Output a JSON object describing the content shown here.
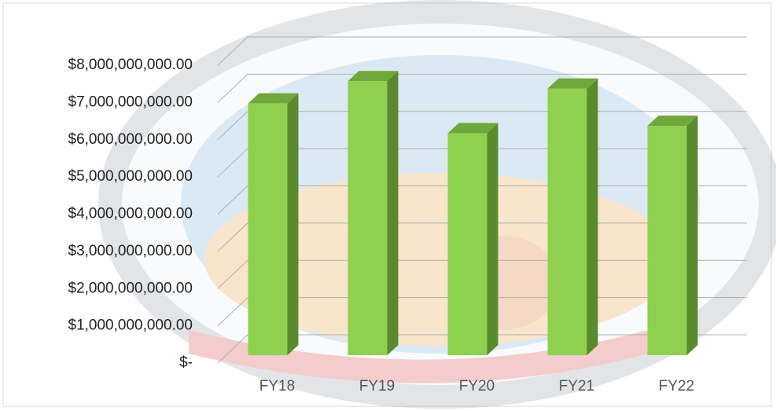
{
  "chart_data": {
    "type": "bar3d",
    "categories": [
      "FY18",
      "FY19",
      "FY20",
      "FY21",
      "FY22"
    ],
    "values": [
      7100000000,
      7700000000,
      6300000000,
      7500000000,
      6500000000
    ],
    "color": "#8fd14f",
    "ylim": [
      0,
      8000000000
    ],
    "yticks": [
      {
        "value": 0,
        "label": "$-"
      },
      {
        "value": 1000000000,
        "label": "$1,000,000,000.00"
      },
      {
        "value": 2000000000,
        "label": "$2,000,000,000.00"
      },
      {
        "value": 3000000000,
        "label": "$3,000,000,000.00"
      },
      {
        "value": 4000000000,
        "label": "$4,000,000,000.00"
      },
      {
        "value": 5000000000,
        "label": "$5,000,000,000.00"
      },
      {
        "value": 6000000000,
        "label": "$6,000,000,000.00"
      },
      {
        "value": 7000000000,
        "label": "$7,000,000,000.00"
      },
      {
        "value": 8000000000,
        "label": "$8,000,000,000.00"
      }
    ],
    "grid": true
  }
}
